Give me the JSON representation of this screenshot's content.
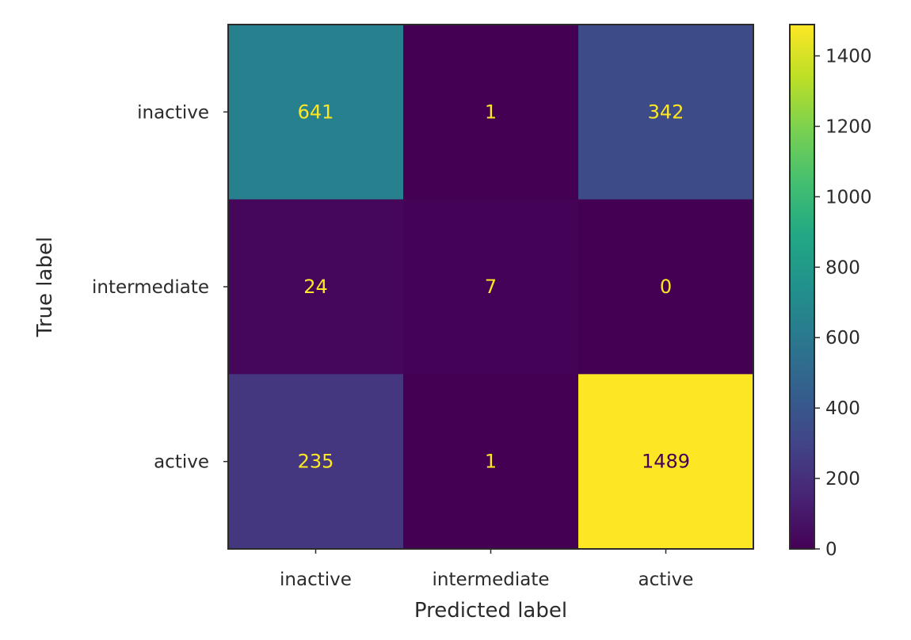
{
  "chart_data": {
    "type": "heatmap",
    "title": "",
    "xlabel": "Predicted label",
    "ylabel": "True label",
    "x_categories": [
      "inactive",
      "intermediate",
      "active"
    ],
    "y_categories": [
      "inactive",
      "intermediate",
      "active"
    ],
    "values": [
      [
        641,
        1,
        342
      ],
      [
        24,
        7,
        0
      ],
      [
        235,
        1,
        1489
      ]
    ],
    "colormap": "viridis",
    "colorbar": {
      "range": [
        0,
        1489
      ],
      "ticks": [
        0,
        200,
        400,
        600,
        800,
        1000,
        1200,
        1400
      ]
    },
    "grid": false
  }
}
